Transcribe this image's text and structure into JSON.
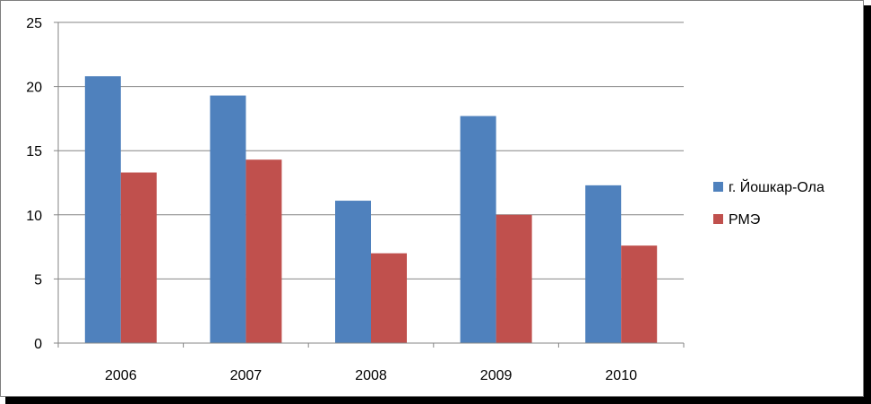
{
  "chart_data": {
    "type": "bar",
    "categories": [
      "2006",
      "2007",
      "2008",
      "2009",
      "2010"
    ],
    "series": [
      {
        "name": "г. Йошкар-Ола",
        "color": "#4F81BD",
        "values": [
          20.8,
          19.3,
          11.1,
          17.7,
          12.3
        ]
      },
      {
        "name": "РМЭ",
        "color": "#C0504D",
        "values": [
          13.3,
          14.3,
          7.0,
          10.0,
          7.6
        ]
      }
    ],
    "ylim": [
      0,
      25
    ],
    "yticks": [
      "0",
      "5",
      "10",
      "15",
      "20",
      "25"
    ],
    "grid": true,
    "legend_position": "right"
  }
}
